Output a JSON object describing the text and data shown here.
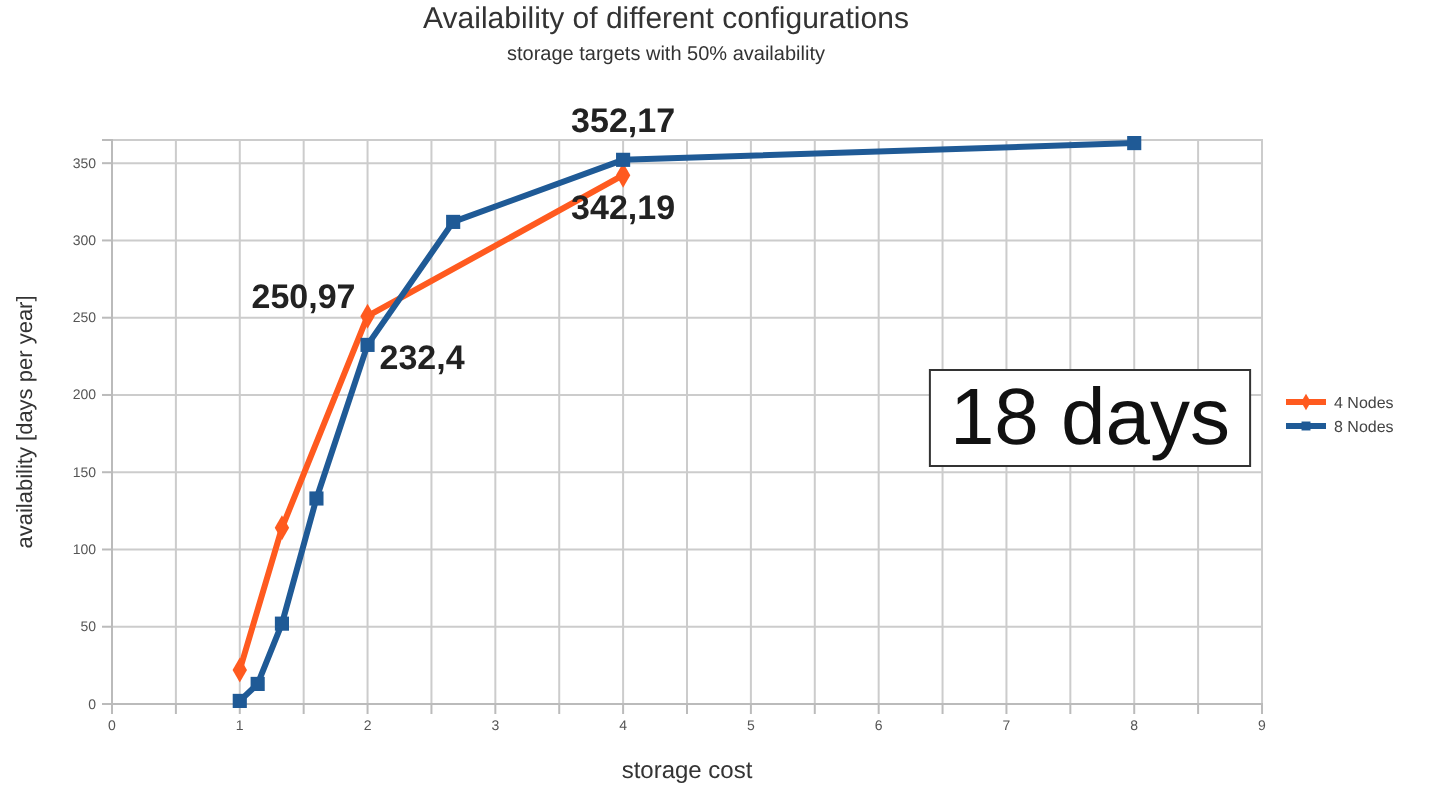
{
  "chart_data": {
    "type": "line",
    "title": "Availability of different configurations",
    "subtitle": "storage targets with 50% availability",
    "xlabel": "storage cost",
    "ylabel": "availability [days per year]",
    "xlim": [
      0,
      9
    ],
    "xticks": [
      0,
      {
        "value": 0.5,
        "label": null
      },
      1,
      {
        "value": 1.5,
        "label": null
      },
      2,
      {
        "value": 2.5,
        "label": null
      },
      3,
      {
        "value": 3.5,
        "label": null
      },
      4,
      {
        "value": 4.5,
        "label": null
      },
      5,
      {
        "value": 5.5,
        "label": null
      },
      6,
      {
        "value": 6.5,
        "label": null
      },
      7,
      {
        "value": 7.5,
        "label": null
      },
      8,
      {
        "value": 8.5,
        "label": null
      },
      9
    ],
    "ylim": [
      0,
      365
    ],
    "yticks": [
      0,
      50,
      100,
      150,
      200,
      250,
      300,
      350
    ],
    "grid": true,
    "legend": "right",
    "line_style": "solid",
    "annotations": [
      "18 days"
    ],
    "series": [
      {
        "name": "4 Nodes",
        "color": "#ff5a1f",
        "marker": "diamond",
        "x": [
          1,
          1.33,
          2,
          4
        ],
        "values": [
          22,
          114,
          250.97,
          342.19
        ],
        "value_labels": [
          null,
          null,
          "250,97",
          "342,19"
        ]
      },
      {
        "name": "8 Nodes",
        "color": "#1f5a96",
        "marker": "square",
        "x": [
          1,
          1.14,
          1.33,
          1.6,
          2,
          2.67,
          4,
          8
        ],
        "values": [
          2,
          13,
          52,
          133,
          232.4,
          312,
          352.17,
          363
        ],
        "value_labels": [
          null,
          null,
          null,
          null,
          "232,4",
          null,
          "352,17",
          null
        ]
      }
    ]
  }
}
